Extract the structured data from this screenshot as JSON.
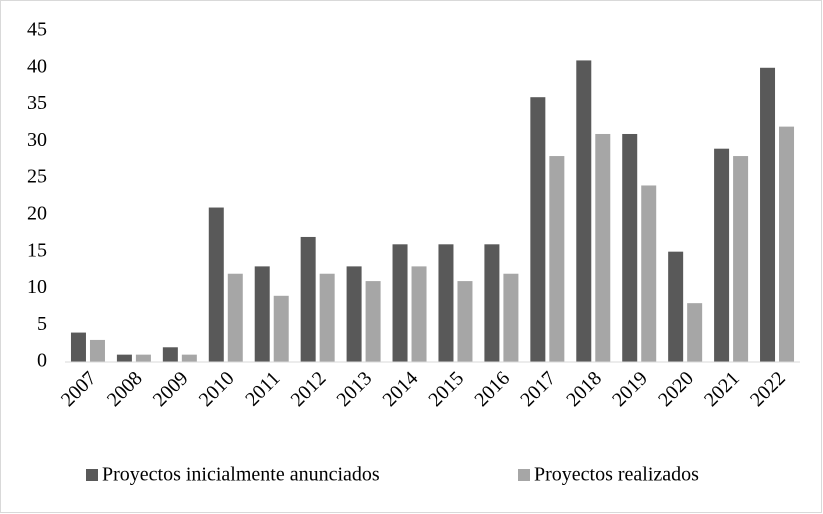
{
  "chart_data": {
    "type": "bar",
    "categories": [
      "2007",
      "2008",
      "2009",
      "2010",
      "2011",
      "2012",
      "2013",
      "2014",
      "2015",
      "2016",
      "2017",
      "2018",
      "2019",
      "2020",
      "2021",
      "2022"
    ],
    "series": [
      {
        "name": "Proyectos inicialmente anunciados",
        "color": "#595959",
        "values": [
          4,
          1,
          2,
          21,
          13,
          17,
          13,
          16,
          16,
          16,
          36,
          41,
          31,
          15,
          29,
          40
        ]
      },
      {
        "name": "Proyectos realizados",
        "color": "#a6a6a6",
        "values": [
          3,
          1,
          1,
          12,
          9,
          12,
          11,
          13,
          11,
          12,
          28,
          31,
          24,
          8,
          28,
          32
        ]
      }
    ],
    "ylim": [
      0,
      45
    ],
    "yticks": [
      0,
      5,
      10,
      15,
      20,
      25,
      30,
      35,
      40,
      45
    ],
    "grid": false,
    "legend": "bottom"
  }
}
